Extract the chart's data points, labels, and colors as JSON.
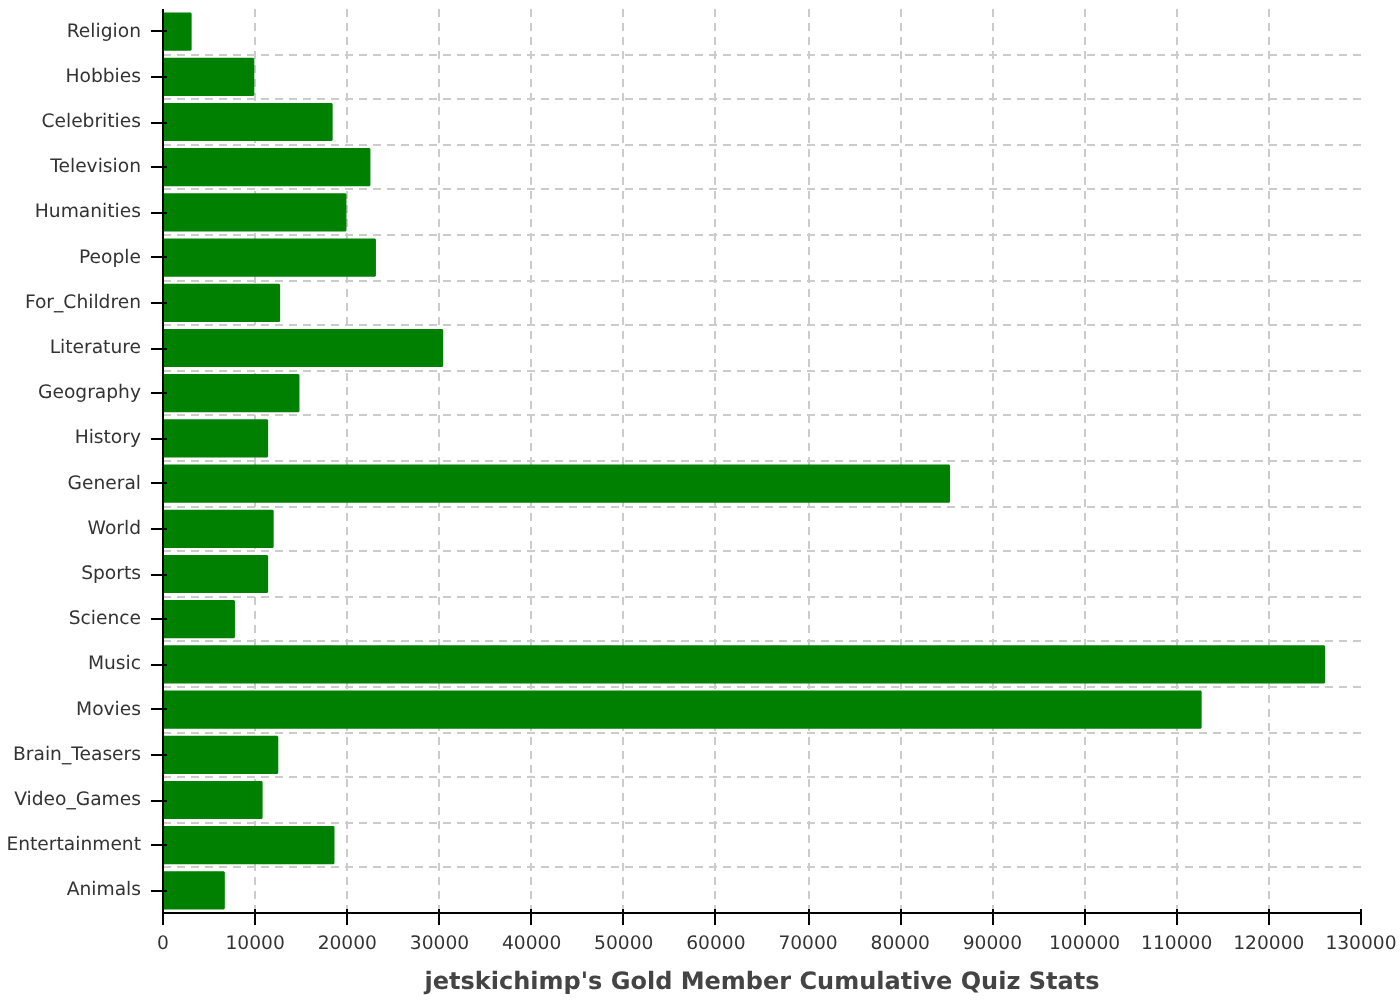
{
  "chart_data": {
    "type": "bar",
    "orientation": "horizontal",
    "xlabel": "jetskichimp's Gold Member Cumulative Quiz Stats",
    "categories": [
      "Religion",
      "Hobbies",
      "Celebrities",
      "Television",
      "Humanities",
      "People",
      "For_Children",
      "Literature",
      "Geography",
      "History",
      "General",
      "World",
      "Sports",
      "Science",
      "Music",
      "Movies",
      "Brain_Teasers",
      "Video_Games",
      "Entertainment",
      "Animals"
    ],
    "values": [
      3000,
      9800,
      18300,
      22400,
      19800,
      23000,
      12600,
      30300,
      14700,
      11300,
      85300,
      11900,
      11300,
      7700,
      126000,
      112600,
      12400,
      10700,
      18500,
      6600
    ],
    "color": "#008000",
    "xlim": [
      0,
      130000
    ],
    "xticks": [
      0,
      10000,
      20000,
      30000,
      40000,
      50000,
      60000,
      70000,
      80000,
      90000,
      100000,
      110000,
      120000,
      130000
    ],
    "grid": true
  }
}
